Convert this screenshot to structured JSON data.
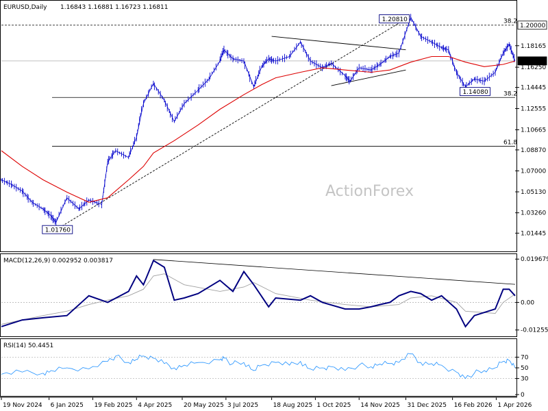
{
  "header": {
    "symbol": "EURUSD,Daily",
    "ohlc": "1.16843 1.16881 1.16723 1.16811"
  },
  "watermark": "ActionForex",
  "colors": {
    "price": "#0000cc",
    "ma": "#dd0000",
    "macd": "#000080",
    "signal": "#a0a0a0",
    "rsi": "#1e90ff",
    "axis": "#000000"
  },
  "chart_data": [
    {
      "type": "line",
      "panel": "price",
      "y_axis": {
        "range": [
          1.0,
          1.22
        ],
        "ticks": [
          "1.18165",
          "1.16250",
          "1.14445",
          "1.12555",
          "1.10665",
          "1.08870",
          "1.07000",
          "1.05130",
          "1.03260",
          "1.01445"
        ]
      },
      "x_axis": {
        "range": [
          "2024-11-19",
          "2026-04-20"
        ],
        "ticks": [
          "19 Nov 2024",
          "6 Jan 2025",
          "19 Feb 2025",
          "4 Apr 2025",
          "20 May 2025",
          "3 Jul 2025",
          "18 Aug 2025",
          "1 Oct 2025",
          "14 Nov 2025",
          "31 Dec 2025",
          "16 Feb 2026",
          "1 Apr 2026"
        ]
      },
      "price_labels": {
        "level_1_2": "1.20000",
        "current": "1.16811"
      },
      "annotations": [
        {
          "text": "1.20810",
          "date": "2026-01-05",
          "value": 1.2081
        },
        {
          "text": "1.14080",
          "date": "2026-03-01",
          "value": 1.1408
        },
        {
          "text": "1.01760",
          "date": "2025-01-13",
          "value": 1.0176
        }
      ],
      "fib_levels": [
        {
          "label": "38.2",
          "value": 1.2
        },
        {
          "label": "38.2",
          "value": 1.1355
        },
        {
          "label": "61.8",
          "value": 1.092
        }
      ],
      "series": [
        {
          "kind": "close",
          "points": [
            [
              "2024-11-19",
              1.062
            ],
            [
              "2024-11-29",
              1.058
            ],
            [
              "2024-12-10",
              1.052
            ],
            [
              "2024-12-20",
              1.042
            ],
            [
              "2024-12-31",
              1.036
            ],
            [
              "2025-01-08",
              1.03
            ],
            [
              "2025-01-13",
              1.024
            ],
            [
              "2025-01-24",
              1.046
            ],
            [
              "2025-02-05",
              1.036
            ],
            [
              "2025-02-15",
              1.044
            ],
            [
              "2025-02-28",
              1.04
            ],
            [
              "2025-03-06",
              1.078
            ],
            [
              "2025-03-14",
              1.088
            ],
            [
              "2025-03-27",
              1.082
            ],
            [
              "2025-04-04",
              1.1
            ],
            [
              "2025-04-11",
              1.13
            ],
            [
              "2025-04-21",
              1.148
            ],
            [
              "2025-05-02",
              1.133
            ],
            [
              "2025-05-12",
              1.114
            ],
            [
              "2025-05-22",
              1.13
            ],
            [
              "2025-06-05",
              1.142
            ],
            [
              "2025-06-16",
              1.152
            ],
            [
              "2025-06-27",
              1.168
            ],
            [
              "2025-07-01",
              1.178
            ],
            [
              "2025-07-10",
              1.17
            ],
            [
              "2025-07-21",
              1.168
            ],
            [
              "2025-07-31",
              1.145
            ],
            [
              "2025-08-08",
              1.163
            ],
            [
              "2025-08-15",
              1.17
            ],
            [
              "2025-08-22",
              1.168
            ],
            [
              "2025-09-05",
              1.172
            ],
            [
              "2025-09-16",
              1.185
            ],
            [
              "2025-09-26",
              1.168
            ],
            [
              "2025-10-08",
              1.162
            ],
            [
              "2025-10-17",
              1.166
            ],
            [
              "2025-10-31",
              1.155
            ],
            [
              "2025-11-05",
              1.15
            ],
            [
              "2025-11-14",
              1.162
            ],
            [
              "2025-11-26",
              1.16
            ],
            [
              "2025-12-05",
              1.165
            ],
            [
              "2025-12-15",
              1.172
            ],
            [
              "2025-12-24",
              1.175
            ],
            [
              "2026-01-05",
              1.207
            ],
            [
              "2026-01-15",
              1.19
            ],
            [
              "2026-01-26",
              1.185
            ],
            [
              "2026-02-05",
              1.18
            ],
            [
              "2026-02-12",
              1.178
            ],
            [
              "2026-02-20",
              1.158
            ],
            [
              "2026-03-01",
              1.145
            ],
            [
              "2026-03-10",
              1.152
            ],
            [
              "2026-03-20",
              1.15
            ],
            [
              "2026-03-31",
              1.158
            ],
            [
              "2026-04-08",
              1.175
            ],
            [
              "2026-04-14",
              1.183
            ],
            [
              "2026-04-20",
              1.168
            ]
          ]
        },
        {
          "kind": "moving_average",
          "points": [
            [
              "2024-11-19",
              1.088
            ],
            [
              "2024-12-10",
              1.074
            ],
            [
              "2024-12-31",
              1.062
            ],
            [
              "2025-01-24",
              1.051
            ],
            [
              "2025-02-15",
              1.042
            ],
            [
              "2025-03-06",
              1.046
            ],
            [
              "2025-03-27",
              1.062
            ],
            [
              "2025-04-11",
              1.074
            ],
            [
              "2025-04-21",
              1.086
            ],
            [
              "2025-05-12",
              1.097
            ],
            [
              "2025-06-05",
              1.111
            ],
            [
              "2025-06-27",
              1.125
            ],
            [
              "2025-07-21",
              1.138
            ],
            [
              "2025-08-08",
              1.147
            ],
            [
              "2025-08-22",
              1.153
            ],
            [
              "2025-09-16",
              1.158
            ],
            [
              "2025-10-08",
              1.162
            ],
            [
              "2025-10-31",
              1.16
            ],
            [
              "2025-11-26",
              1.158
            ],
            [
              "2025-12-15",
              1.16
            ],
            [
              "2026-01-05",
              1.167
            ],
            [
              "2026-01-26",
              1.172
            ],
            [
              "2026-02-12",
              1.172
            ],
            [
              "2026-03-01",
              1.167
            ],
            [
              "2026-03-20",
              1.163
            ],
            [
              "2026-04-08",
              1.165
            ],
            [
              "2026-04-20",
              1.168
            ]
          ]
        }
      ]
    },
    {
      "type": "line",
      "panel": "macd",
      "title": "MACD(12,26,9) 0.002952 0.003817",
      "y_axis": {
        "range": [
          -0.0145,
          0.021
        ],
        "ticks": [
          "0.019679",
          "0.00",
          "-0.012552"
        ]
      },
      "series": [
        {
          "kind": "macd",
          "points": [
            [
              "2024-11-19",
              -0.011
            ],
            [
              "2024-12-10",
              -0.008
            ],
            [
              "2024-12-31",
              -0.007
            ],
            [
              "2025-01-24",
              -0.006
            ],
            [
              "2025-02-15",
              0.003
            ],
            [
              "2025-03-06",
              0.0
            ],
            [
              "2025-03-27",
              0.005
            ],
            [
              "2025-04-04",
              0.012
            ],
            [
              "2025-04-11",
              0.008
            ],
            [
              "2025-04-21",
              0.019
            ],
            [
              "2025-05-02",
              0.016
            ],
            [
              "2025-05-12",
              0.001
            ],
            [
              "2025-05-22",
              0.002
            ],
            [
              "2025-06-05",
              0.004
            ],
            [
              "2025-06-27",
              0.01
            ],
            [
              "2025-07-10",
              0.005
            ],
            [
              "2025-07-21",
              0.014
            ],
            [
              "2025-07-31",
              0.008
            ],
            [
              "2025-08-15",
              -0.002
            ],
            [
              "2025-08-22",
              0.002
            ],
            [
              "2025-09-16",
              0.001
            ],
            [
              "2025-09-26",
              0.003
            ],
            [
              "2025-10-08",
              0.0
            ],
            [
              "2025-10-31",
              -0.003
            ],
            [
              "2025-11-14",
              -0.003
            ],
            [
              "2025-11-26",
              -0.002
            ],
            [
              "2025-12-05",
              -0.001
            ],
            [
              "2025-12-15",
              0.0
            ],
            [
              "2025-12-24",
              0.003
            ],
            [
              "2026-01-05",
              0.005
            ],
            [
              "2026-01-15",
              0.004
            ],
            [
              "2026-01-26",
              0.001
            ],
            [
              "2026-02-05",
              0.003
            ],
            [
              "2026-02-20",
              -0.003
            ],
            [
              "2026-03-01",
              -0.011
            ],
            [
              "2026-03-10",
              -0.006
            ],
            [
              "2026-03-31",
              -0.003
            ],
            [
              "2026-04-08",
              0.006
            ],
            [
              "2026-04-14",
              0.006
            ],
            [
              "2026-04-20",
              0.003
            ]
          ]
        },
        {
          "kind": "signal",
          "points": [
            [
              "2024-11-19",
              -0.01
            ],
            [
              "2024-12-31",
              -0.006
            ],
            [
              "2025-01-24",
              -0.004
            ],
            [
              "2025-02-15",
              -0.001
            ],
            [
              "2025-03-06",
              0.001
            ],
            [
              "2025-03-27",
              0.003
            ],
            [
              "2025-04-11",
              0.006
            ],
            [
              "2025-04-21",
              0.012
            ],
            [
              "2025-05-02",
              0.013
            ],
            [
              "2025-05-22",
              0.008
            ],
            [
              "2025-06-27",
              0.005
            ],
            [
              "2025-07-21",
              0.007
            ],
            [
              "2025-07-31",
              0.009
            ],
            [
              "2025-08-22",
              0.004
            ],
            [
              "2025-09-26",
              0.001
            ],
            [
              "2025-10-31",
              -0.001
            ],
            [
              "2025-11-26",
              -0.002
            ],
            [
              "2025-12-24",
              -0.001
            ],
            [
              "2026-01-05",
              0.002
            ],
            [
              "2026-01-26",
              0.003
            ],
            [
              "2026-02-20",
              0.0
            ],
            [
              "2026-03-01",
              -0.004
            ],
            [
              "2026-03-31",
              -0.005
            ],
            [
              "2026-04-08",
              0.0
            ],
            [
              "2026-04-20",
              0.0038
            ]
          ]
        }
      ]
    },
    {
      "type": "line",
      "panel": "rsi",
      "title": "RSI(14) 50.4451",
      "y_axis": {
        "range": [
          0,
          100
        ],
        "ticks": [
          "70",
          "50",
          "30",
          "0"
        ]
      },
      "series": [
        {
          "kind": "rsi",
          "points": [
            [
              "2024-11-19",
              38
            ],
            [
              "2024-12-10",
              42
            ],
            [
              "2024-12-31",
              40
            ],
            [
              "2025-01-08",
              45
            ],
            [
              "2025-01-24",
              50
            ],
            [
              "2025-02-15",
              48
            ],
            [
              "2025-03-06",
              62
            ],
            [
              "2025-03-14",
              72
            ],
            [
              "2025-03-27",
              60
            ],
            [
              "2025-04-04",
              66
            ],
            [
              "2025-04-11",
              72
            ],
            [
              "2025-04-21",
              68
            ],
            [
              "2025-05-02",
              58
            ],
            [
              "2025-05-12",
              50
            ],
            [
              "2025-05-22",
              55
            ],
            [
              "2025-06-05",
              60
            ],
            [
              "2025-06-27",
              65
            ],
            [
              "2025-07-01",
              68
            ],
            [
              "2025-07-10",
              58
            ],
            [
              "2025-07-21",
              60
            ],
            [
              "2025-07-31",
              45
            ],
            [
              "2025-08-08",
              55
            ],
            [
              "2025-08-22",
              60
            ],
            [
              "2025-09-05",
              55
            ],
            [
              "2025-09-16",
              62
            ],
            [
              "2025-09-26",
              48
            ],
            [
              "2025-10-08",
              50
            ],
            [
              "2025-10-17",
              52
            ],
            [
              "2025-10-31",
              45
            ],
            [
              "2025-11-14",
              55
            ],
            [
              "2025-11-26",
              52
            ],
            [
              "2025-12-05",
              57
            ],
            [
              "2025-12-15",
              58
            ],
            [
              "2025-12-24",
              60
            ],
            [
              "2026-01-05",
              76
            ],
            [
              "2026-01-15",
              60
            ],
            [
              "2026-01-26",
              58
            ],
            [
              "2026-02-05",
              55
            ],
            [
              "2026-02-20",
              42
            ],
            [
              "2026-03-01",
              30
            ],
            [
              "2026-03-10",
              40
            ],
            [
              "2026-03-20",
              45
            ],
            [
              "2026-03-31",
              50
            ],
            [
              "2026-04-08",
              62
            ],
            [
              "2026-04-14",
              64
            ],
            [
              "2026-04-20",
              50
            ]
          ]
        }
      ]
    }
  ]
}
